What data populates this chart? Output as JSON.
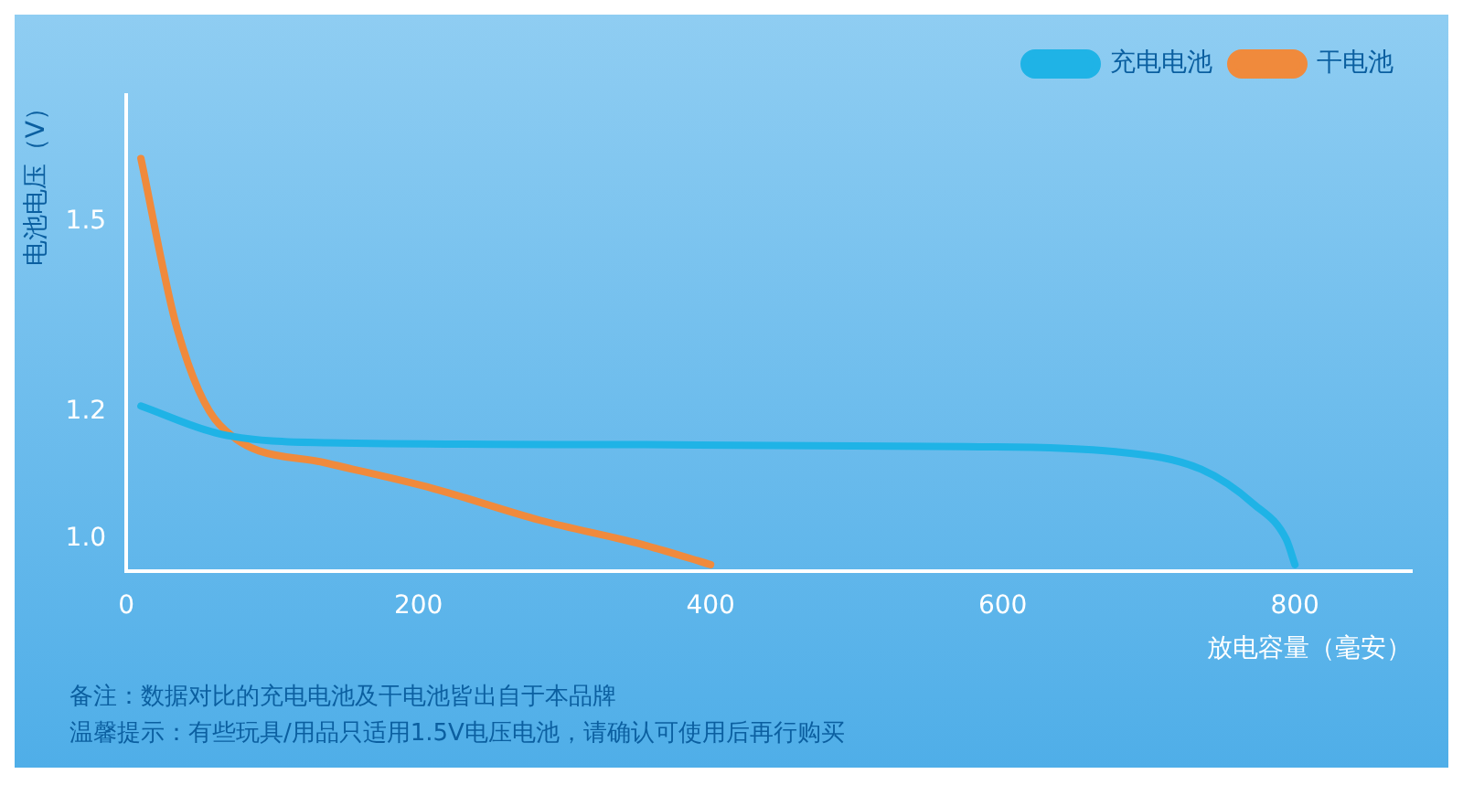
{
  "chart_data": {
    "type": "line",
    "xlabel": "放电容量（毫安）",
    "ylabel": "电池电压（V）",
    "series": [
      {
        "name": "充电电池",
        "color": "#1fb3e6",
        "x": [
          10,
          64,
          137,
          356,
          575,
          677,
          736,
          772,
          794,
          800
        ],
        "values": [
          1.21,
          1.166,
          1.152,
          1.149,
          1.146,
          1.138,
          1.11,
          1.055,
          1.0,
          0.96
        ]
      },
      {
        "name": "干电池",
        "color": "#f08a3c",
        "x": [
          10,
          35,
          64,
          137,
          210,
          283,
          356,
          400
        ],
        "values": [
          1.6,
          1.33,
          1.18,
          1.12,
          1.08,
          1.03,
          0.99,
          0.96
        ]
      }
    ],
    "xlim": [
      0,
      880
    ],
    "xticks": [
      0,
      200,
      400,
      600,
      800
    ],
    "ylim": [
      0.95,
      1.7
    ],
    "yticks": [
      {
        "value": 1.0,
        "label": "1.0"
      },
      1.2,
      1.5
    ],
    "grid": false,
    "legend": "top right",
    "marker": "none",
    "line_style": "solid",
    "annotations": [
      "备注：数据对比的充电电池及干电池皆出自于本品牌",
      "温馨提示：有些玩具/用品只适用1.5V电压电池，请确认可使用后再行购买"
    ]
  }
}
